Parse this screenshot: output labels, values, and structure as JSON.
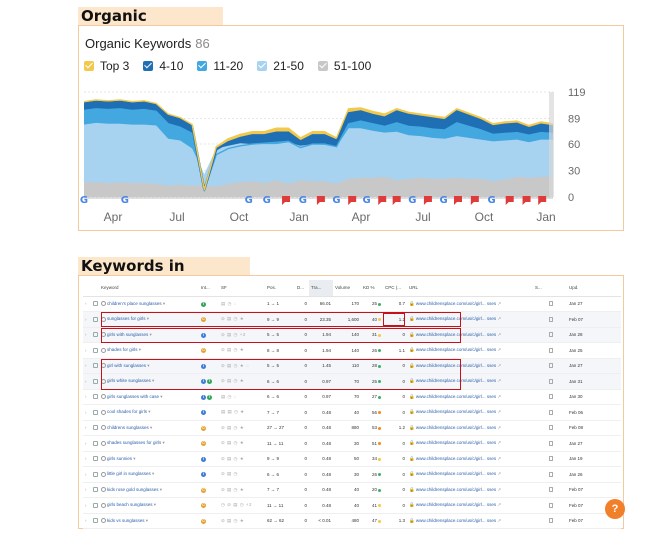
{
  "headings": {
    "organic_keywords": "Organic Keywords:",
    "keywords_in_positions": "Keywords in Positions:"
  },
  "overview": {
    "title": "Organic Keywords",
    "count": "86",
    "legend": [
      {
        "label": "Top 3",
        "color": "#f2c94c"
      },
      {
        "label": "4-10",
        "color": "#1f6fb5"
      },
      {
        "label": "11-20",
        "color": "#43a8e0"
      },
      {
        "label": "21-50",
        "color": "#a7d3f0"
      },
      {
        "label": "51-100",
        "color": "#c8c8c8"
      }
    ]
  },
  "chart_data": {
    "type": "area",
    "title": "Organic Keywords",
    "x_ticks": [
      "Apr",
      "Jul",
      "Oct",
      "Jan",
      "Apr",
      "Jul",
      "Oct",
      "Jan"
    ],
    "y_ticks": [
      0,
      30,
      60,
      89,
      119
    ],
    "ylim": [
      0,
      119
    ],
    "x": [
      0,
      1,
      2,
      3,
      4,
      5,
      6,
      7,
      8,
      9,
      10,
      11,
      12,
      13,
      14,
      15,
      16,
      17,
      18,
      19,
      20,
      21,
      22,
      23,
      24,
      25,
      26,
      27,
      28,
      29,
      30,
      31,
      32,
      33,
      34,
      35,
      36,
      37,
      38,
      39
    ],
    "series": [
      {
        "name": "51-100",
        "color": "#c8c8c8",
        "values": [
          16,
          16,
          15,
          16,
          15,
          15,
          14,
          12,
          13,
          12,
          13,
          11,
          14,
          16,
          17,
          15,
          18,
          14,
          18,
          17,
          17,
          14,
          20,
          21,
          21,
          22,
          18,
          20,
          21,
          20,
          20,
          21,
          20,
          20,
          17,
          19,
          22,
          21,
          22,
          22
        ]
      },
      {
        "name": "21-50",
        "color": "#a7d3f0",
        "values": [
          82,
          84,
          83,
          83,
          82,
          82,
          81,
          66,
          64,
          55,
          26,
          55,
          58,
          61,
          60,
          60,
          60,
          62,
          58,
          60,
          59,
          57,
          78,
          78,
          75,
          73,
          74,
          70,
          69,
          67,
          66,
          69,
          67,
          65,
          63,
          64,
          65,
          62,
          65,
          65
        ]
      },
      {
        "name": "11-20",
        "color": "#43a8e0",
        "values": [
          98,
          100,
          99,
          100,
          98,
          99,
          97,
          83,
          79,
          72,
          8,
          48,
          55,
          58,
          60,
          61,
          62,
          63,
          56,
          60,
          60,
          57,
          83,
          86,
          83,
          80,
          84,
          80,
          79,
          77,
          76,
          84,
          80,
          76,
          71,
          72,
          73,
          70,
          73,
          72
        ]
      },
      {
        "name": "4-10",
        "color": "#1f6fb5",
        "values": [
          106,
          108,
          107,
          108,
          106,
          107,
          104,
          92,
          88,
          80,
          8,
          54,
          62,
          67,
          70,
          70,
          73,
          73,
          63,
          70,
          70,
          64,
          95,
          97,
          93,
          90,
          97,
          93,
          91,
          89,
          87,
          97,
          92,
          87,
          80,
          82,
          83,
          78,
          82,
          80
        ]
      },
      {
        "name": "Top 3",
        "color": "#f2c94c",
        "values": [
          108,
          110,
          109,
          110,
          108,
          109,
          106,
          94,
          90,
          82,
          8,
          57,
          66,
          71,
          74,
          74,
          78,
          78,
          67,
          74,
          74,
          67,
          100,
          101,
          97,
          94,
          100,
          96,
          94,
          92,
          90,
          100,
          95,
          90,
          83,
          85,
          86,
          81,
          85,
          83
        ]
      }
    ],
    "events": [
      {
        "x": 0,
        "kind": "google"
      },
      {
        "x": 3.4,
        "kind": "google"
      },
      {
        "x": 13.7,
        "kind": "google"
      },
      {
        "x": 15.2,
        "kind": "google"
      },
      {
        "x": 16.8,
        "kind": "flag"
      },
      {
        "x": 18.2,
        "kind": "google"
      },
      {
        "x": 19.7,
        "kind": "flag"
      },
      {
        "x": 21,
        "kind": "google"
      },
      {
        "x": 22.3,
        "kind": "flag"
      },
      {
        "x": 23.5,
        "kind": "google"
      },
      {
        "x": 24.8,
        "kind": "flag"
      },
      {
        "x": 26,
        "kind": "flag"
      },
      {
        "x": 27.3,
        "kind": "google"
      },
      {
        "x": 28.6,
        "kind": "flag"
      },
      {
        "x": 29.9,
        "kind": "google"
      },
      {
        "x": 31.1,
        "kind": "flag"
      },
      {
        "x": 32.5,
        "kind": "flag"
      },
      {
        "x": 33.9,
        "kind": "google"
      },
      {
        "x": 35.4,
        "kind": "flag"
      },
      {
        "x": 36.8,
        "kind": "flag"
      },
      {
        "x": 38.1,
        "kind": "flag"
      }
    ]
  },
  "table": {
    "headers": [
      "Keyword",
      "Int...",
      "SF",
      "Pos.",
      "D...",
      "Tra...",
      "Volume",
      "KD %",
      "CPC (...",
      "URL",
      "S...",
      "Upd."
    ],
    "rows": [
      {
        "kw": "children's place sunglasses",
        "intent": "T",
        "pos": "1 → 1",
        "d": "0",
        "tra": "66.01",
        "vol": "170",
        "kd": "25",
        "cpc": "0.7",
        "url": "www.childrensplace.com/us/c/girl... sses",
        "upd": "Jan 27"
      },
      {
        "kw": "sunglasses for girls",
        "intent": "C",
        "pos": "9 → 9",
        "d": "0",
        "tra": "23.35",
        "vol": "1,600",
        "kd": "40",
        "cpc": "1.2",
        "url": "www.childrensplace.com/us/c/girl... sses",
        "upd": "Feb 07"
      },
      {
        "kw": "girls with sunglasses",
        "intent": "I",
        "pos": "5 → 5",
        "d": "0",
        "tra": "1.94",
        "vol": "140",
        "kd": "31",
        "cpc": "0",
        "url": "www.childrensplace.com/us/c/girl... sses",
        "upd": "Jan 28"
      },
      {
        "kw": "shades for girls",
        "intent": "C",
        "pos": "8 → 8",
        "d": "0",
        "tra": "1.94",
        "vol": "140",
        "kd": "26",
        "cpc": "1.1",
        "url": "www.childrensplace.com/us/c/girl... sses",
        "upd": "Jan 25"
      },
      {
        "kw": "girl with sunglasses",
        "intent": "I",
        "pos": "5 → 5",
        "d": "0",
        "tra": "1.45",
        "vol": "110",
        "kd": "28",
        "cpc": "0",
        "url": "www.childrensplace.com/us/c/girl... sses",
        "upd": "Jan 27"
      },
      {
        "kw": "girls white sunglasses",
        "intent": "I T",
        "pos": "6 → 6",
        "d": "0",
        "tra": "0.97",
        "vol": "70",
        "kd": "25",
        "cpc": "0",
        "url": "www.childrensplace.com/us/c/girl... sses",
        "upd": "Jan 31"
      },
      {
        "kw": "girls sunglasses with case",
        "intent": "I T",
        "pos": "6 → 6",
        "d": "0",
        "tra": "0.97",
        "vol": "70",
        "kd": "27",
        "cpc": "0",
        "url": "www.childrensplace.com/us/c/girl... sses",
        "upd": "Jan 30"
      },
      {
        "kw": "cool shades for girls",
        "intent": "I",
        "pos": "7 → 7",
        "d": "0",
        "tra": "0.48",
        "vol": "40",
        "kd": "56",
        "cpc": "0",
        "url": "www.childrensplace.com/us/c/girl... sses",
        "upd": "Feb 06"
      },
      {
        "kw": "childrens sunglasses",
        "intent": "C",
        "pos": "27 → 27",
        "d": "0",
        "tra": "0.48",
        "vol": "880",
        "kd": "53",
        "cpc": "1.2",
        "url": "www.childrensplace.com/us/c/girl... sses",
        "upd": "Feb 08"
      },
      {
        "kw": "shades sunglasses for girls",
        "intent": "C",
        "pos": "11 → 11",
        "d": "0",
        "tra": "0.48",
        "vol": "30",
        "kd": "51",
        "cpc": "0",
        "url": "www.childrensplace.com/us/c/girl... sses",
        "upd": "Jan 27"
      },
      {
        "kw": "girls sunnies",
        "intent": "I",
        "pos": "9 → 9",
        "d": "0",
        "tra": "0.48",
        "vol": "50",
        "kd": "34",
        "cpc": "0",
        "url": "www.childrensplace.com/us/c/girl... sses",
        "upd": "Jan 19"
      },
      {
        "kw": "little girl in sunglasses",
        "intent": "I",
        "pos": "6 → 6",
        "d": "0",
        "tra": "0.48",
        "vol": "30",
        "kd": "26",
        "cpc": "0",
        "url": "www.childrensplace.com/us/c/girl... sses",
        "upd": "Jan 26"
      },
      {
        "kw": "kids rose gold sunglasses",
        "intent": "C",
        "pos": "7 → 7",
        "d": "0",
        "tra": "0.48",
        "vol": "40",
        "kd": "20",
        "cpc": "0",
        "url": "www.childrensplace.com/us/c/girl... sses",
        "upd": "Feb 07"
      },
      {
        "kw": "girls beach sunglasses",
        "intent": "C",
        "pos": "11 → 11",
        "d": "0",
        "tra": "0.48",
        "vol": "40",
        "kd": "41",
        "cpc": "0",
        "url": "www.childrensplace.com/us/c/girl... sses",
        "upd": "Feb 07"
      },
      {
        "kw": "kids vs sunglasses",
        "intent": "C",
        "pos": "62 → 62",
        "d": "0",
        "tra": "< 0.01",
        "vol": "480",
        "kd": "47",
        "cpc": "1.3",
        "url": "www.childrensplace.com/us/c/girl... sses",
        "upd": "Feb 07"
      }
    ]
  },
  "colors": {
    "intent_I": "#3d7dd8",
    "intent_T": "#2fa55a",
    "intent_C": "#e6a02e",
    "kd_green": "#3bb06b",
    "kd_yellow": "#f2c94c",
    "kd_orange": "#f08a24",
    "highlight": "#c8101a"
  },
  "help": {
    "label": "?"
  }
}
